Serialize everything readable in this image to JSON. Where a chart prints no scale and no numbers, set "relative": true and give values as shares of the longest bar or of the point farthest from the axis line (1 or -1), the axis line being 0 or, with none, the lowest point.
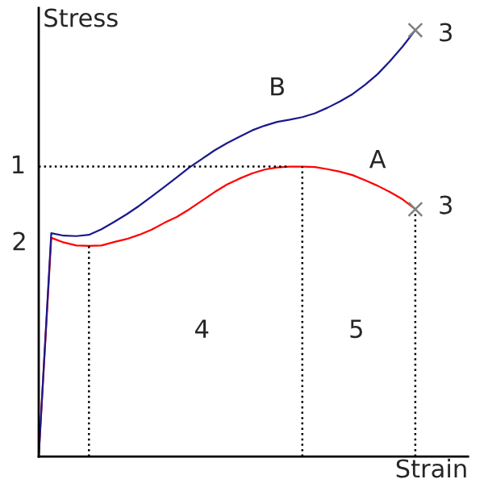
{
  "chart_data": {
    "type": "line",
    "relative": true,
    "xlabel": "Strain",
    "ylabel": "Stress",
    "categories": [
      null,
      null,
      null,
      null,
      null,
      null,
      null,
      null,
      null,
      null,
      null,
      null,
      null,
      null,
      null,
      null,
      null,
      null,
      null,
      null,
      null,
      null,
      null,
      null,
      null,
      null,
      null,
      null,
      null,
      null,
      null,
      null,
      null,
      null,
      null
    ],
    "series": [
      {
        "name": "A",
        "color": "#ff0000",
        "values": [
          0,
          0.513,
          0.502,
          0.495,
          0.494,
          0.495,
          0.503,
          0.51,
          0.52,
          0.532,
          0.548,
          0.562,
          0.58,
          0.6,
          0.62,
          0.638,
          0.652,
          0.664,
          0.673,
          0.678,
          0.68,
          0.68,
          0.679,
          0.674,
          0.668,
          0.66,
          0.648,
          0.635,
          0.62,
          0.603,
          0.58,
          null,
          null,
          null,
          null
        ]
      },
      {
        "name": "B",
        "color": "#1a1a8c",
        "values": [
          0,
          0.524,
          0.518,
          0.517,
          0.52,
          0.533,
          0.55,
          0.568,
          0.588,
          0.61,
          0.632,
          0.655,
          0.678,
          0.698,
          0.718,
          0.735,
          0.75,
          0.765,
          0.776,
          0.785,
          0.79,
          0.796,
          0.805,
          0.818,
          0.833,
          0.85,
          0.872,
          0.897,
          0.928,
          0.962,
          1,
          null,
          null,
          null,
          null
        ]
      }
    ],
    "ref_lines": [
      {
        "axis": "y",
        "value": 0.68,
        "label": "1",
        "color": "#000000",
        "line_style": "dotted"
      }
    ],
    "annotations": [
      "2",
      "3",
      "3",
      "4",
      "5"
    ]
  }
}
